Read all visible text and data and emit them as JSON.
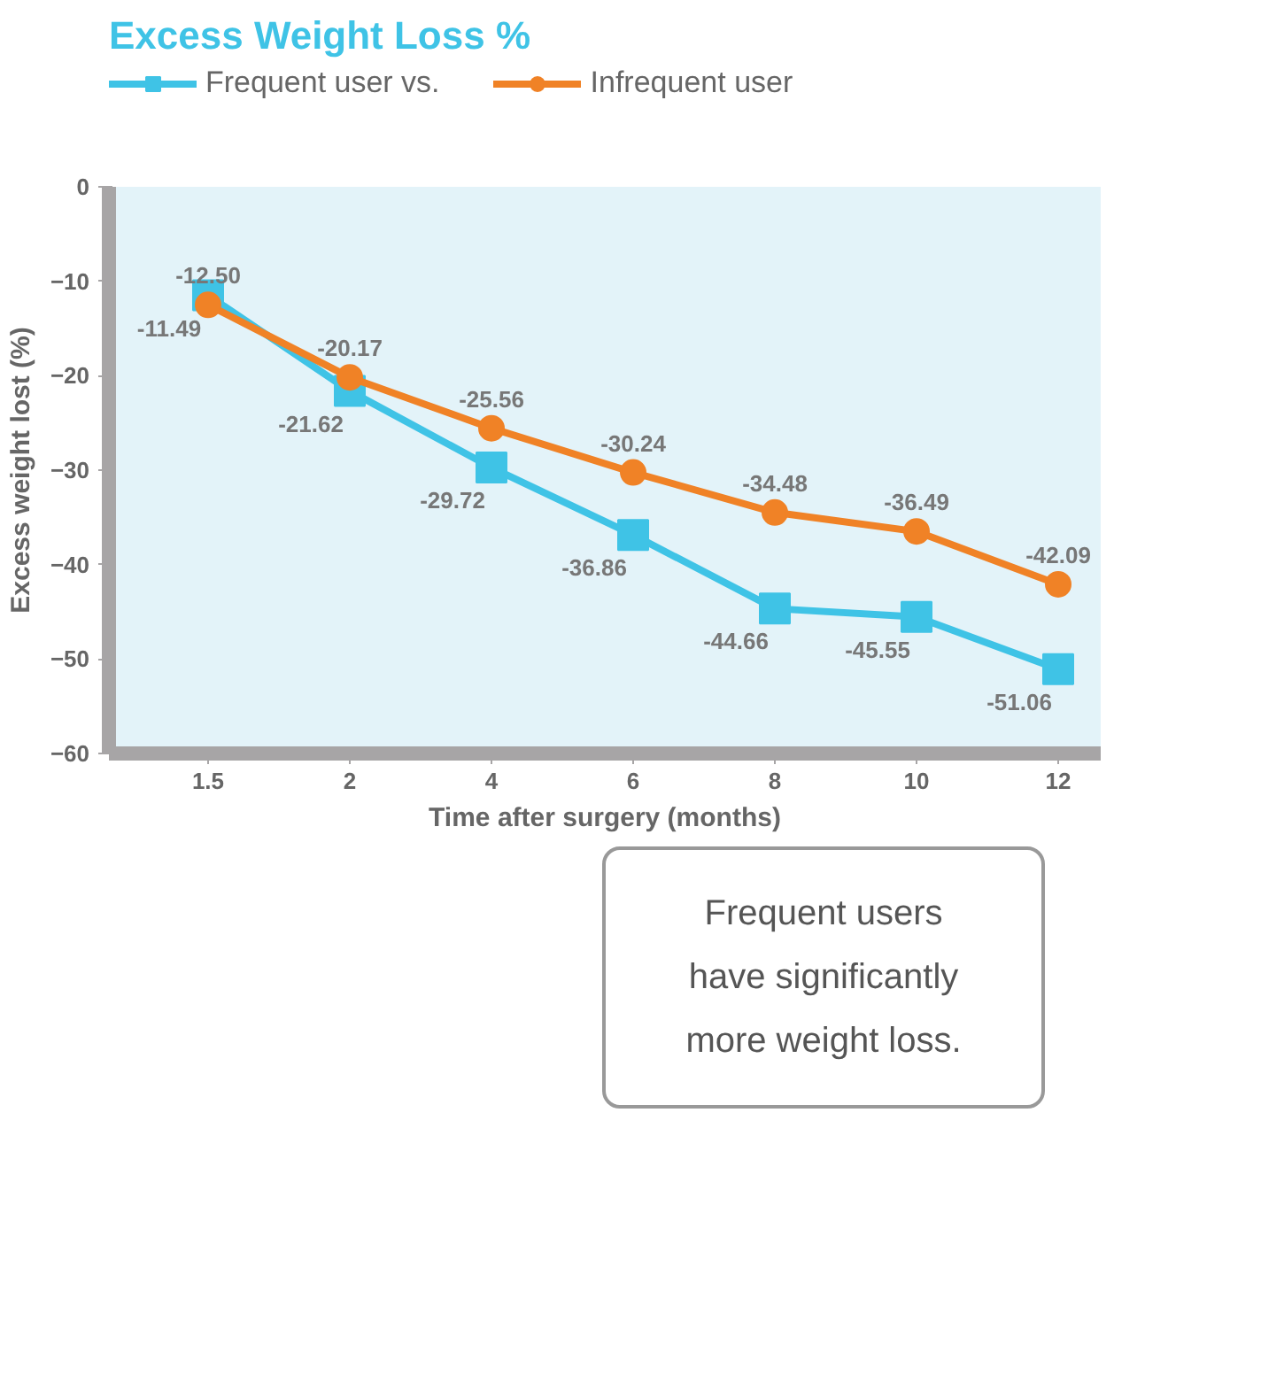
{
  "chart_data": {
    "type": "line",
    "title": "Excess Weight Loss %",
    "xlabel": "Time after surgery (months)",
    "ylabel": "Excess weight lost (%)",
    "categories": [
      "1.5",
      "2",
      "4",
      "6",
      "8",
      "10",
      "12"
    ],
    "series": [
      {
        "name": "Frequent user vs.",
        "color": "#3fc3e6",
        "marker": "square",
        "values": [
          -11.49,
          -21.62,
          -29.72,
          -36.86,
          -44.66,
          -45.55,
          -51.06
        ],
        "value_labels": [
          "-11.49",
          "-21.62",
          "-29.72",
          "-36.86",
          "-44.66",
          "-45.55",
          "-51.06"
        ]
      },
      {
        "name": "Infrequent user",
        "color": "#f08226",
        "marker": "circle",
        "values": [
          -12.5,
          -20.17,
          -25.56,
          -30.24,
          -34.48,
          -36.49,
          -42.09
        ],
        "value_labels": [
          "-12.50",
          "-20.17",
          "-25.56",
          "-30.24",
          "-34.48",
          "-36.49",
          "-42.09"
        ]
      }
    ],
    "ylim": [
      -60,
      0
    ],
    "yticks": [
      0,
      -10,
      -20,
      -30,
      -40,
      -50,
      -60
    ],
    "grid": false,
    "legend": "top left",
    "line_style": "solid",
    "annotations": [
      "Frequent users\nhave significantly\nmore weight loss."
    ]
  }
}
